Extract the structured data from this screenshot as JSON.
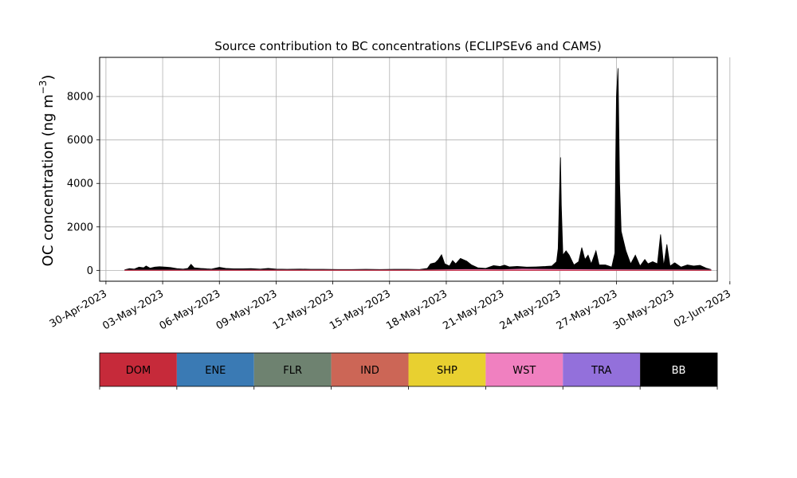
{
  "chart_data": {
    "type": "area",
    "title": "Source contribution to BC concentrations (ECLIPSEv6 and CAMS)",
    "ylabel_main": "OC concentration (ng m",
    "ylabel_sup": "−3",
    "ylabel_close": ")",
    "xlabel": "",
    "ylim": [
      -500,
      9800
    ],
    "xlim": [
      "2023-04-29T16:00",
      "2023-06-01T08:00"
    ],
    "grid": true,
    "y_ticks": [
      0,
      2000,
      4000,
      6000,
      8000
    ],
    "x_ticks": [
      {
        "date": "2023-04-30",
        "label": "30-Apr-2023"
      },
      {
        "date": "2023-05-03",
        "label": "03-May-2023"
      },
      {
        "date": "2023-05-06",
        "label": "06-May-2023"
      },
      {
        "date": "2023-05-09",
        "label": "09-May-2023"
      },
      {
        "date": "2023-05-12",
        "label": "12-May-2023"
      },
      {
        "date": "2023-05-15",
        "label": "15-May-2023"
      },
      {
        "date": "2023-05-18",
        "label": "18-May-2023"
      },
      {
        "date": "2023-05-21",
        "label": "21-May-2023"
      },
      {
        "date": "2023-05-24",
        "label": "24-May-2023"
      },
      {
        "date": "2023-05-27",
        "label": "27-May-2023"
      },
      {
        "date": "2023-05-30",
        "label": "30-May-2023"
      },
      {
        "date": "2023-06-02",
        "label": "02-Jun-2023"
      }
    ],
    "legend": [
      {
        "name": "DOM",
        "color": "#c62a3a",
        "text_color": "#000000"
      },
      {
        "name": "ENE",
        "color": "#3a7ab4",
        "text_color": "#000000"
      },
      {
        "name": "FLR",
        "color": "#6e8270",
        "text_color": "#000000"
      },
      {
        "name": "IND",
        "color": "#cc6656",
        "text_color": "#000000"
      },
      {
        "name": "SHP",
        "color": "#e8d030",
        "text_color": "#000000"
      },
      {
        "name": "WST",
        "color": "#f080c0",
        "text_color": "#000000"
      },
      {
        "name": "TRA",
        "color": "#9370db",
        "text_color": "#000000"
      },
      {
        "name": "BB",
        "color": "#000000",
        "text_color": "#ffffff"
      }
    ],
    "series": [
      {
        "name": "BB",
        "color": "#000000",
        "points": [
          [
            "2023-05-01T00:00",
            30
          ],
          [
            "2023-05-01T06:00",
            80
          ],
          [
            "2023-05-01T12:00",
            60
          ],
          [
            "2023-05-01T18:00",
            150
          ],
          [
            "2023-05-02T00:00",
            120
          ],
          [
            "2023-05-02T03:00",
            200
          ],
          [
            "2023-05-02T08:00",
            100
          ],
          [
            "2023-05-02T14:00",
            150
          ],
          [
            "2023-05-02T20:00",
            170
          ],
          [
            "2023-05-03T04:00",
            150
          ],
          [
            "2023-05-03T10:00",
            130
          ],
          [
            "2023-05-03T18:00",
            80
          ],
          [
            "2023-05-04T02:00",
            60
          ],
          [
            "2023-05-04T08:00",
            90
          ],
          [
            "2023-05-04T12:00",
            280
          ],
          [
            "2023-05-04T16:00",
            120
          ],
          [
            "2023-05-05T00:00",
            90
          ],
          [
            "2023-05-05T08:00",
            70
          ],
          [
            "2023-05-05T14:00",
            60
          ],
          [
            "2023-05-06T00:00",
            140
          ],
          [
            "2023-05-06T08:00",
            90
          ],
          [
            "2023-05-06T18:00",
            70
          ],
          [
            "2023-05-07T06:00",
            70
          ],
          [
            "2023-05-07T16:00",
            80
          ],
          [
            "2023-05-08T04:00",
            60
          ],
          [
            "2023-05-08T14:00",
            90
          ],
          [
            "2023-05-09T00:00",
            60
          ],
          [
            "2023-05-09T14:00",
            50
          ],
          [
            "2023-05-10T06:00",
            60
          ],
          [
            "2023-05-10T20:00",
            50
          ],
          [
            "2023-05-11T12:00",
            50
          ],
          [
            "2023-05-12T06:00",
            40
          ],
          [
            "2023-05-13T00:00",
            40
          ],
          [
            "2023-05-13T18:00",
            50
          ],
          [
            "2023-05-14T12:00",
            40
          ],
          [
            "2023-05-15T06:00",
            50
          ],
          [
            "2023-05-16T00:00",
            50
          ],
          [
            "2023-05-16T14:00",
            40
          ],
          [
            "2023-05-17T00:00",
            90
          ],
          [
            "2023-05-17T04:00",
            300
          ],
          [
            "2023-05-17T10:00",
            350
          ],
          [
            "2023-05-17T14:00",
            500
          ],
          [
            "2023-05-17T18:00",
            720
          ],
          [
            "2023-05-17T22:00",
            300
          ],
          [
            "2023-05-18T04:00",
            200
          ],
          [
            "2023-05-18T08:00",
            450
          ],
          [
            "2023-05-18T12:00",
            300
          ],
          [
            "2023-05-18T18:00",
            550
          ],
          [
            "2023-05-19T02:00",
            420
          ],
          [
            "2023-05-19T08:00",
            250
          ],
          [
            "2023-05-19T16:00",
            120
          ],
          [
            "2023-05-20T02:00",
            90
          ],
          [
            "2023-05-20T12:00",
            220
          ],
          [
            "2023-05-20T20:00",
            180
          ],
          [
            "2023-05-21T02:00",
            240
          ],
          [
            "2023-05-21T08:00",
            160
          ],
          [
            "2023-05-21T18:00",
            180
          ],
          [
            "2023-05-22T06:00",
            150
          ],
          [
            "2023-05-22T18:00",
            160
          ],
          [
            "2023-05-23T06:00",
            180
          ],
          [
            "2023-05-23T14:00",
            200
          ],
          [
            "2023-05-23T20:00",
            400
          ],
          [
            "2023-05-23T22:00",
            1000
          ],
          [
            "2023-05-24T00:00",
            4000
          ],
          [
            "2023-05-24T01:00",
            5200
          ],
          [
            "2023-05-24T02:00",
            3000
          ],
          [
            "2023-05-24T04:00",
            700
          ],
          [
            "2023-05-24T08:00",
            900
          ],
          [
            "2023-05-24T12:00",
            700
          ],
          [
            "2023-05-24T18:00",
            250
          ],
          [
            "2023-05-25T00:00",
            400
          ],
          [
            "2023-05-25T04:00",
            1050
          ],
          [
            "2023-05-25T08:00",
            500
          ],
          [
            "2023-05-25T12:00",
            700
          ],
          [
            "2023-05-25T16:00",
            300
          ],
          [
            "2023-05-25T22:00",
            900
          ],
          [
            "2023-05-26T02:00",
            250
          ],
          [
            "2023-05-26T10:00",
            250
          ],
          [
            "2023-05-26T18:00",
            150
          ],
          [
            "2023-05-26T22:00",
            800
          ],
          [
            "2023-05-26T23:00",
            5000
          ],
          [
            "2023-05-27T00:00",
            8000
          ],
          [
            "2023-05-27T02:00",
            9300
          ],
          [
            "2023-05-27T04:00",
            4000
          ],
          [
            "2023-05-27T06:00",
            1800
          ],
          [
            "2023-05-27T12:00",
            900
          ],
          [
            "2023-05-27T18:00",
            300
          ],
          [
            "2023-05-28T00:00",
            700
          ],
          [
            "2023-05-28T06:00",
            200
          ],
          [
            "2023-05-28T12:00",
            500
          ],
          [
            "2023-05-28T16:00",
            300
          ],
          [
            "2023-05-28T22:00",
            400
          ],
          [
            "2023-05-29T04:00",
            300
          ],
          [
            "2023-05-29T08:00",
            1650
          ],
          [
            "2023-05-29T12:00",
            200
          ],
          [
            "2023-05-29T16:00",
            1200
          ],
          [
            "2023-05-29T20:00",
            200
          ],
          [
            "2023-05-30T02:00",
            350
          ],
          [
            "2023-05-30T10:00",
            150
          ],
          [
            "2023-05-30T18:00",
            250
          ],
          [
            "2023-05-31T02:00",
            200
          ],
          [
            "2023-05-31T10:00",
            230
          ],
          [
            "2023-05-31T18:00",
            100
          ],
          [
            "2023-06-01T00:00",
            40
          ]
        ]
      },
      {
        "name": "WST",
        "color": "#f080c0",
        "points": [
          [
            "2023-05-01T00:00",
            10
          ],
          [
            "2023-05-10T00:00",
            12
          ],
          [
            "2023-05-17T00:00",
            15
          ],
          [
            "2023-05-19T00:00",
            40
          ],
          [
            "2023-05-21T00:00",
            30
          ],
          [
            "2023-05-22T00:00",
            60
          ],
          [
            "2023-05-23T00:00",
            50
          ],
          [
            "2023-05-24T00:00",
            40
          ],
          [
            "2023-05-26T00:00",
            30
          ],
          [
            "2023-05-28T00:00",
            25
          ],
          [
            "2023-06-01T00:00",
            15
          ]
        ]
      },
      {
        "name": "DOM",
        "color": "#c62a3a",
        "points": [
          [
            "2023-05-01T00:00",
            5
          ],
          [
            "2023-05-15T00:00",
            6
          ],
          [
            "2023-06-01T00:00",
            5
          ]
        ]
      }
    ]
  }
}
